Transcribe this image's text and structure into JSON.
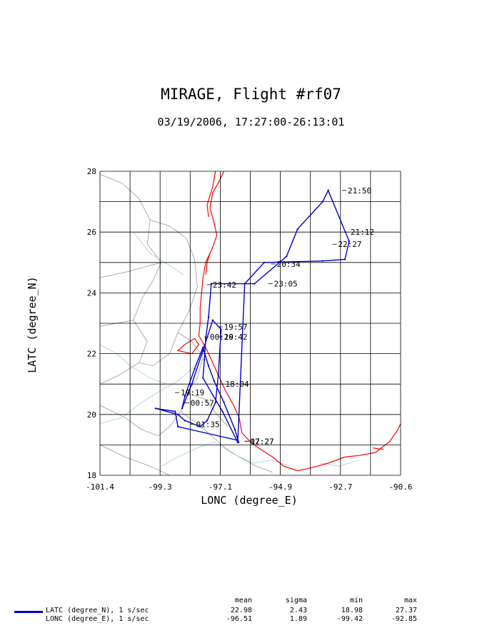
{
  "title": "MIRAGE, Flight #rf07",
  "subtitle": "03/19/2006, 17:27:00-26:13:01",
  "colors": {
    "track": "#0000cc",
    "coast": "#ff0000",
    "border": "#999999",
    "river": "#aad4e6",
    "grid": "#000000"
  },
  "chart_data": {
    "type": "line",
    "xlabel": "LONC (degree_E)",
    "ylabel": "LATC (degree_N)",
    "xlim": [
      -101.4,
      -90.6
    ],
    "ylim": [
      18,
      28
    ],
    "x_ticks": [
      "-101.4",
      "-99.3",
      "-97.1",
      "-94.9",
      "-92.7",
      "-90.6"
    ],
    "y_ticks": [
      "18",
      "20",
      "22",
      "24",
      "26",
      "28"
    ],
    "grid": true,
    "series": [
      {
        "name": "",
        "x": [
          -96.42,
          -96.55,
          -96.95,
          -97.3,
          -97.5,
          -97.7,
          -98.0,
          -98.35,
          -98.45,
          -98.1,
          -97.7,
          -97.35,
          -97.05,
          -97.15,
          -97.25,
          -97.55,
          -97.8,
          -98.35,
          -98.6,
          -99.4,
          -98.7,
          -98.6,
          -96.45,
          -96.2,
          -95.5,
          -93.4,
          -92.6,
          -92.45,
          -93.2,
          -93.4,
          -94.3,
          -94.7,
          -95.85,
          -97.4,
          -97.5,
          -97.6,
          -97.65,
          -97.7,
          -97.0,
          -96.45
        ],
        "y": [
          19.08,
          19.5,
          20.4,
          21.1,
          21.6,
          22.2,
          21.5,
          20.6,
          20.2,
          21.0,
          22.1,
          23.1,
          22.8,
          21.3,
          20.4,
          19.8,
          19.6,
          19.8,
          20.0,
          20.2,
          20.1,
          19.6,
          19.15,
          24.3,
          25.0,
          25.05,
          25.1,
          25.7,
          27.37,
          27.0,
          26.1,
          25.2,
          24.3,
          24.3,
          23.2,
          22.5,
          21.8,
          21.2,
          20.1,
          19.08
        ]
      }
    ],
    "annotations": [
      {
        "text": "21:50",
        "x": -92.55,
        "y": 27.37
      },
      {
        "text": "21:12",
        "x": -92.45,
        "y": 26.0
      },
      {
        "text": "22:27",
        "x": -92.9,
        "y": 25.6
      },
      {
        "text": "20:34",
        "x": -95.1,
        "y": 24.95
      },
      {
        "text": "23:05",
        "x": -95.2,
        "y": 24.3
      },
      {
        "text": "23:42",
        "x": -97.4,
        "y": 24.27
      },
      {
        "text": "19:57",
        "x": -97.0,
        "y": 22.88
      },
      {
        "text": "00:19",
        "x": -97.5,
        "y": 22.55
      },
      {
        "text": "20:42",
        "x": -97.0,
        "y": 22.55
      },
      {
        "text": "18:04",
        "x": -96.95,
        "y": 21.0
      },
      {
        "text": "19:19",
        "x": -98.55,
        "y": 20.72
      },
      {
        "text": "00:57",
        "x": -98.2,
        "y": 20.38
      },
      {
        "text": "01:35",
        "x": -98.0,
        "y": 19.68
      },
      {
        "text": "02:27",
        "x": -96.05,
        "y": 19.12
      },
      {
        "text": "17:27",
        "x": -96.05,
        "y": 19.12
      }
    ]
  },
  "stats": {
    "headers": [
      "mean",
      "sigma",
      "min",
      "max"
    ],
    "rows": [
      {
        "label": "LATC (degree_N), 1 s/sec",
        "mean": "22.98",
        "sigma": "2.43",
        "min": "18.98",
        "max": "27.37"
      },
      {
        "label": "LONC (degree_E), 1 s/sec",
        "mean": "-96.51",
        "sigma": "1.89",
        "min": "-99.42",
        "max": "-92.85"
      }
    ]
  }
}
